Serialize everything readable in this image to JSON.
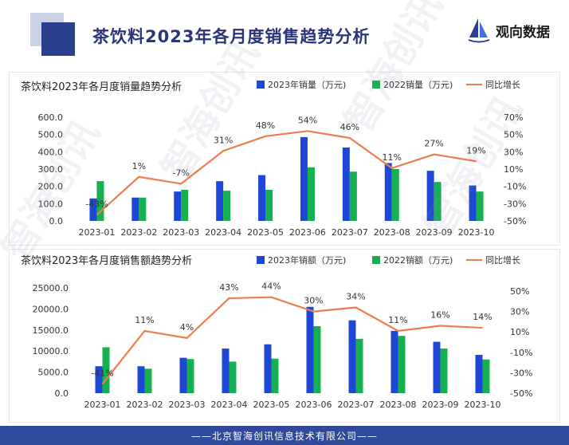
{
  "header": {
    "title": "茶饮料2023年各月度销售趋势分析",
    "brand": "观向数据",
    "accent": "#2b3f8f"
  },
  "footer": {
    "text": "——北京智海创讯信息技术有限公司——"
  },
  "watermark": {
    "text": "智海创讯"
  },
  "colors": {
    "s2023": "#1f47d6",
    "s2022": "#17b050",
    "growth": "#f07c4c"
  },
  "chart_data": [
    {
      "type": "bar",
      "title": "茶饮料2023年各月度销量趋势分析",
      "categories": [
        "2023-01",
        "2023-02",
        "2023-03",
        "2023-04",
        "2023-05",
        "2023-06",
        "2023-07",
        "2023-08",
        "2023-09",
        "2023-10"
      ],
      "series": [
        {
          "name": "2023年销量（万元)",
          "values": [
            130,
            135,
            170,
            230,
            265,
            485,
            425,
            335,
            290,
            205
          ]
        },
        {
          "name": "2022销量（万元)",
          "values": [
            230,
            135,
            180,
            175,
            180,
            310,
            285,
            300,
            225,
            170
          ]
        },
        {
          "name": "同比增长",
          "type": "line",
          "axis": "right",
          "values": [
            -43,
            1,
            -7,
            31,
            48,
            54,
            46,
            11,
            27,
            19
          ],
          "labels": [
            "-43%",
            "1%",
            "-7%",
            "31%",
            "48%",
            "54%",
            "46%",
            "11%",
            "27%",
            "19%"
          ]
        }
      ],
      "y_ticks": [
        "0.0",
        "100.0",
        "200.0",
        "300.0",
        "400.0",
        "500.0",
        "600.0"
      ],
      "ylim": [
        0,
        600
      ],
      "y2_ticks": [
        "-50%",
        "-30%",
        "-10%",
        "10%",
        "30%",
        "50%",
        "70%"
      ],
      "y2lim": [
        -50,
        70
      ],
      "legend": "top-right"
    },
    {
      "type": "bar",
      "title": "茶饮料2023年各月度销售额趋势分析",
      "categories": [
        "2023-01",
        "2023-02",
        "2023-03",
        "2023-04",
        "2023-05",
        "2023-06",
        "2023-07",
        "2023-08",
        "2023-09",
        "2023-10"
      ],
      "series": [
        {
          "name": "2023年销额（万元)",
          "values": [
            6400,
            6400,
            8400,
            10600,
            11600,
            20500,
            17300,
            14800,
            12200,
            9100
          ]
        },
        {
          "name": "2022销额（万元)",
          "values": [
            10900,
            5800,
            8100,
            7500,
            8200,
            15900,
            12900,
            13600,
            10600,
            8000
          ]
        },
        {
          "name": "同比增长",
          "type": "line",
          "axis": "right",
          "values": [
            -41,
            11,
            4,
            43,
            44,
            30,
            34,
            11,
            16,
            14
          ],
          "labels": [
            "-41%",
            "11%",
            "4%",
            "43%",
            "44%",
            "30%",
            "34%",
            "11%",
            "16%",
            "14%"
          ]
        }
      ],
      "y_ticks": [
        "0.0",
        "5000.0",
        "10000.0",
        "15000.0",
        "20000.0",
        "25000.0"
      ],
      "ylim": [
        0,
        25000
      ],
      "y2_ticks": [
        "-50%",
        "-30%",
        "-10%",
        "10%",
        "30%",
        "50%"
      ],
      "y2lim": [
        -50,
        50
      ],
      "legend": "top-right"
    }
  ]
}
